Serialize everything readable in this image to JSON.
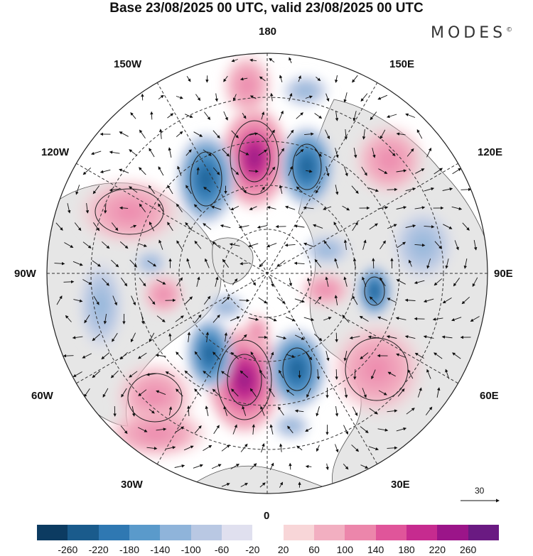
{
  "title": "Base 23/08/2025 00 UTC, valid 23/08/2025 00 UTC",
  "brand": "MODES",
  "brand_mark": "©",
  "longitude_labels": {
    "top": "180",
    "bottom": "0",
    "left": "90W",
    "right": "90E",
    "upper_left_1": "150W",
    "upper_left_2": "120W",
    "upper_right_1": "150E",
    "upper_right_2": "120E",
    "lower_left_1": "60W",
    "lower_left_2": "30W",
    "lower_right_1": "60E",
    "lower_right_2": "30E"
  },
  "reference_vector": {
    "label": "30"
  },
  "colorbar": {
    "colors": [
      "#0c3b61",
      "#1a5b8c",
      "#2f78b2",
      "#5a9acb",
      "#8fb4da",
      "#b9c8e3",
      "#e0e0ef",
      "#ffffff",
      "#f8d6d8",
      "#f2afc1",
      "#ec86ab",
      "#e0559a",
      "#c62b8f",
      "#9b1589",
      "#6a1a82"
    ],
    "tick_labels": [
      "-260",
      "-220",
      "-180",
      "-140",
      "-100",
      "-60",
      "-20",
      "20",
      "60",
      "100",
      "140",
      "180",
      "220",
      "260"
    ]
  }
}
